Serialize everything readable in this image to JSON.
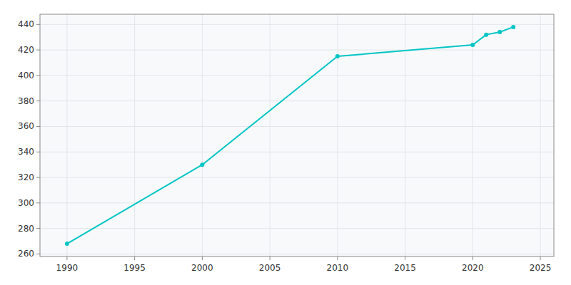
{
  "chart_data": {
    "type": "line",
    "x": [
      1990,
      2000,
      2010,
      2020,
      2021,
      2022,
      2023
    ],
    "values": [
      268,
      330,
      415,
      424,
      432,
      434,
      438
    ],
    "color": "#00C5C5",
    "marker": "circle",
    "xlim": [
      1988,
      2026
    ],
    "ylim": [
      258,
      448
    ],
    "xticks": [
      1990,
      1995,
      2000,
      2005,
      2010,
      2015,
      2020,
      2025
    ],
    "yticks": [
      260,
      280,
      300,
      320,
      340,
      360,
      380,
      400,
      420,
      440
    ],
    "grid": true
  }
}
